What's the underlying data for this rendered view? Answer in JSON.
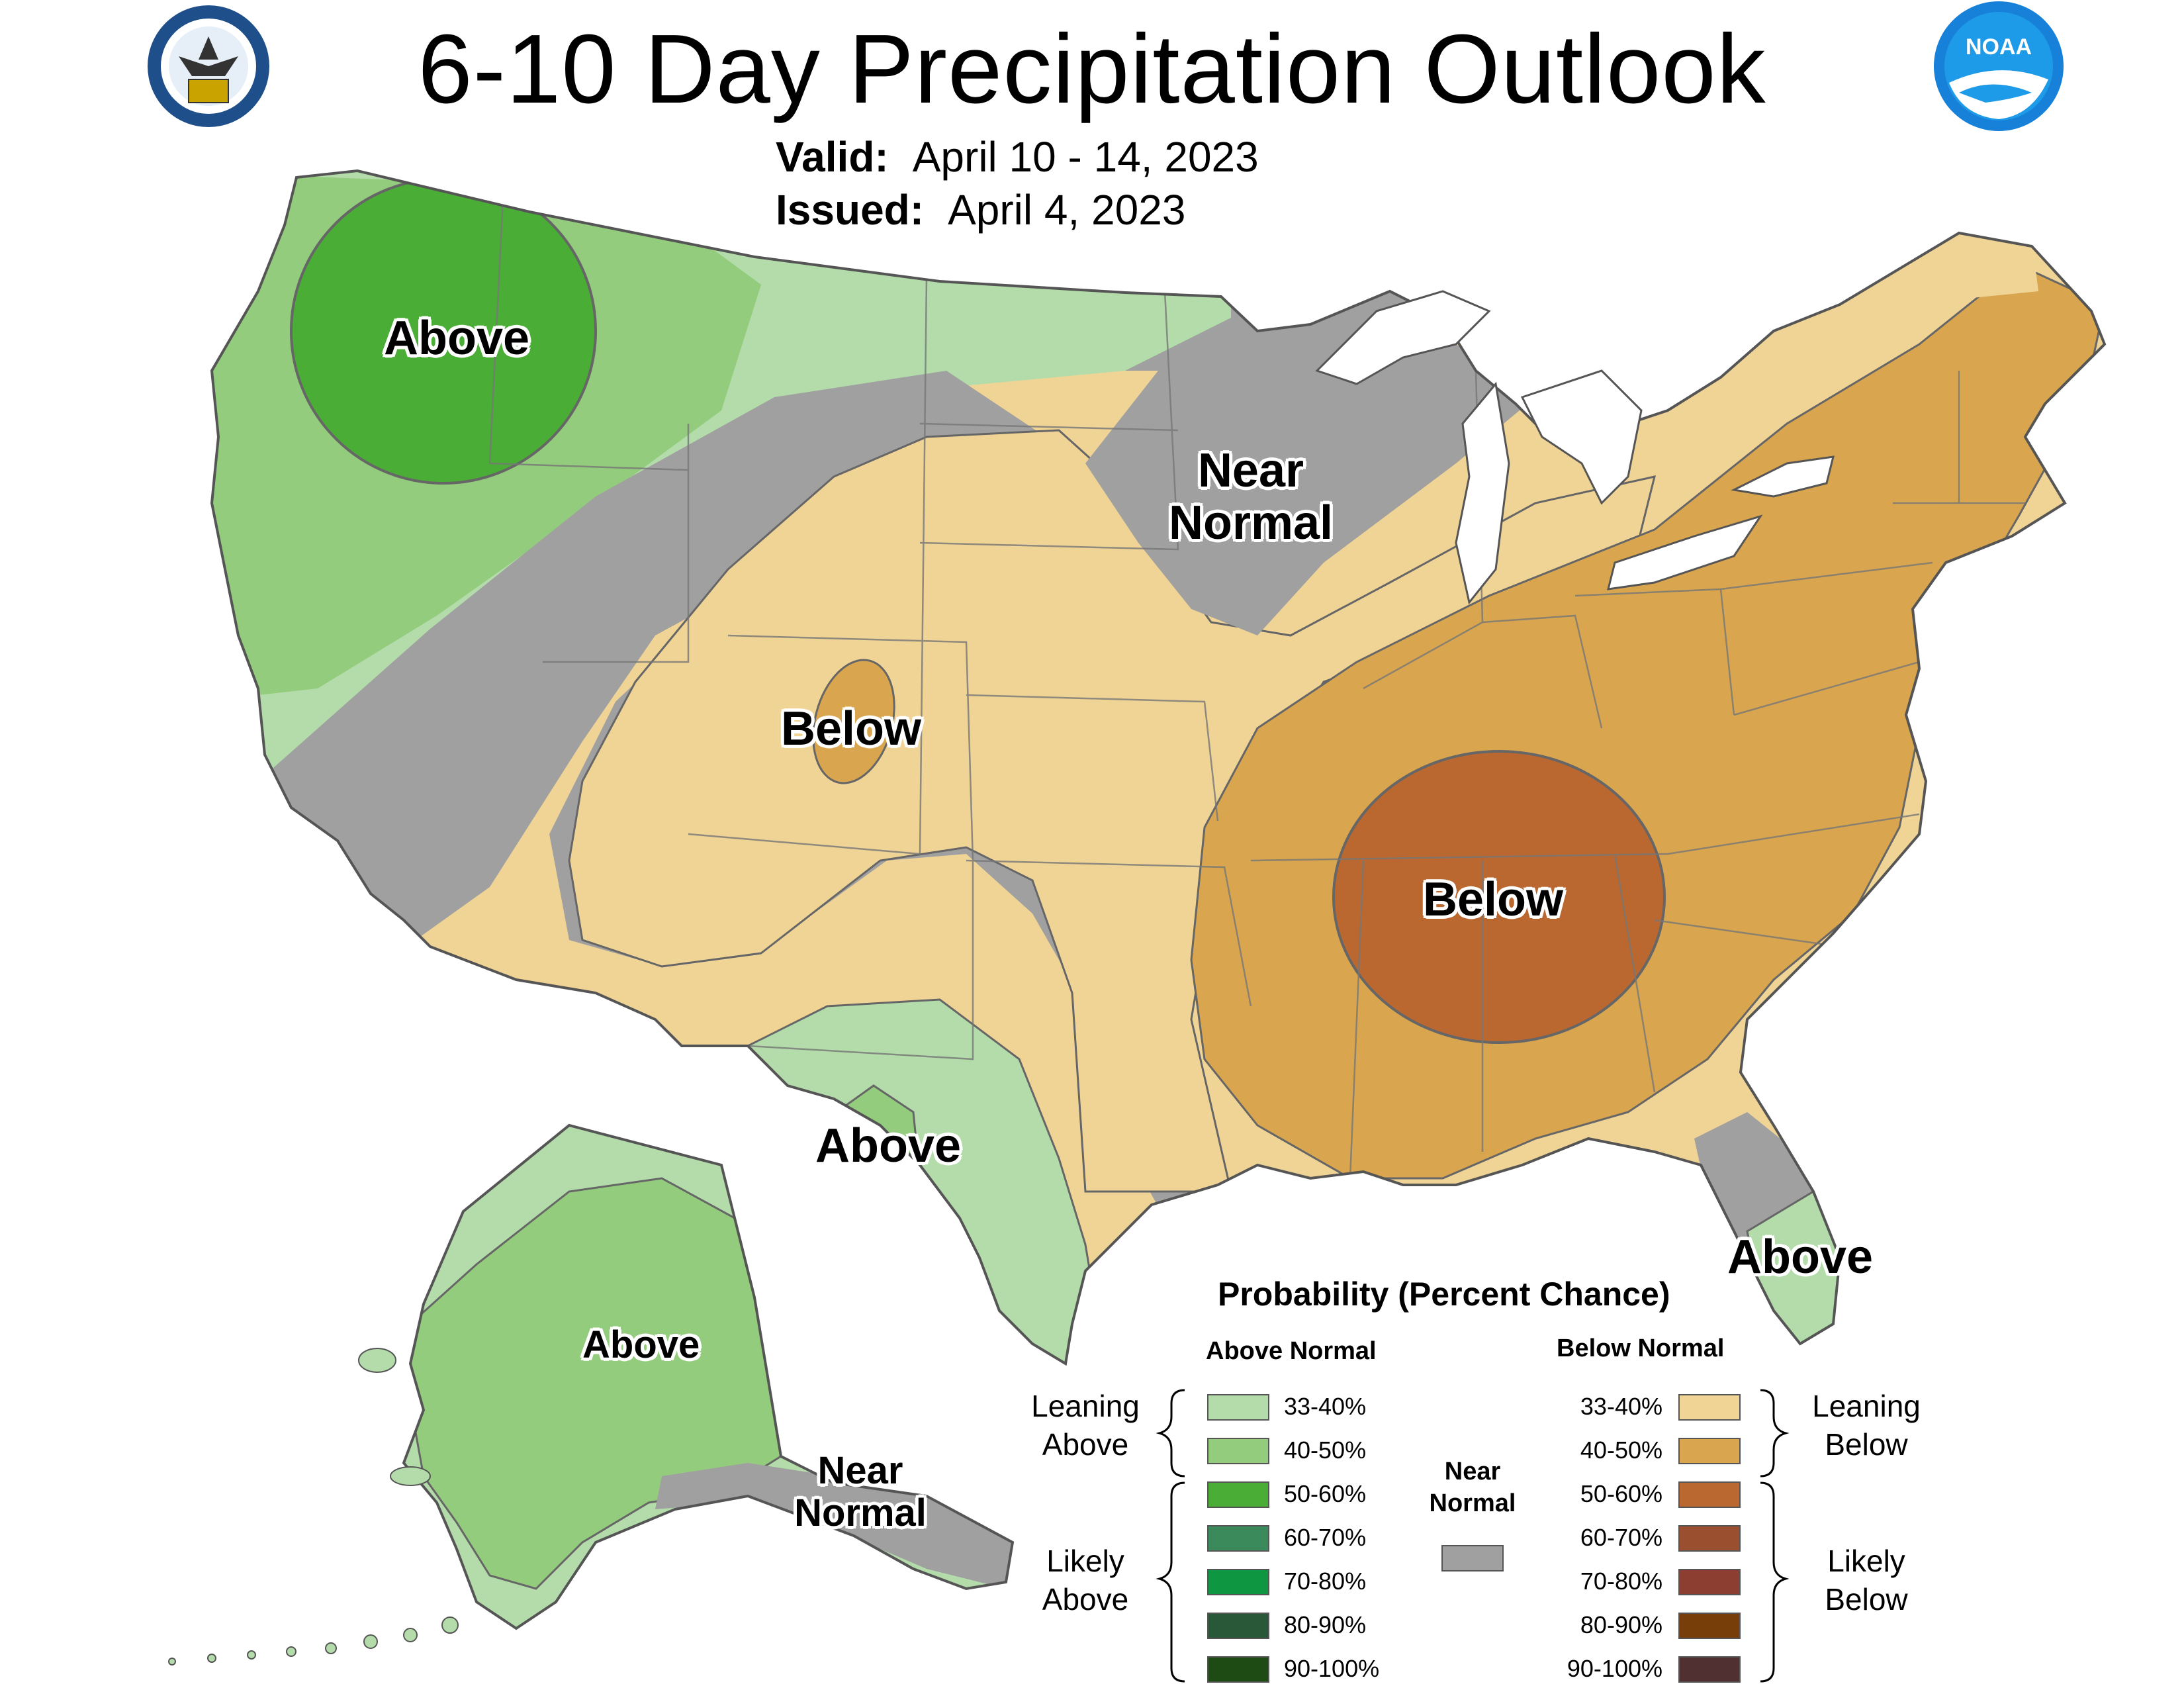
{
  "header": {
    "title": "6-10 Day Precipitation Outlook",
    "valid_label": "Valid:",
    "valid_value": "April 10 - 14, 2023",
    "issued_label": "Issued:",
    "issued_value": "April 4, 2023",
    "logo_left": "department-of-commerce-seal",
    "logo_right": "noaa-logo",
    "noaa_text": "NOAA"
  },
  "regions": {
    "northwest": "Above",
    "upper_midwest_line1": "Near",
    "upper_midwest_line2": "Normal",
    "colorado": "Below",
    "tennessee_valley": "Below",
    "west_texas": "Above",
    "florida": "Above",
    "alaska": "Above",
    "alaska_se_line1": "Near",
    "alaska_se_line2": "Normal"
  },
  "legend": {
    "title": "Probability (Percent Chance)",
    "above_header": "Above Normal",
    "below_header": "Below Normal",
    "leaning_above": [
      "Leaning",
      "Above"
    ],
    "likely_above": [
      "Likely",
      "Above"
    ],
    "leaning_below": [
      "Leaning",
      "Below"
    ],
    "likely_below": [
      "Likely",
      "Below"
    ],
    "near_normal": [
      "Near",
      "Normal"
    ],
    "near_color": "#a0a0a0",
    "above": [
      {
        "label": "33-40%",
        "color": "#b3dcaa"
      },
      {
        "label": "40-50%",
        "color": "#93cc7c"
      },
      {
        "label": "50-60%",
        "color": "#4aae36"
      },
      {
        "label": "60-70%",
        "color": "#3a8a5c"
      },
      {
        "label": "70-80%",
        "color": "#0f9640"
      },
      {
        "label": "80-90%",
        "color": "#285838"
      },
      {
        "label": "90-100%",
        "color": "#1e4a14"
      }
    ],
    "below": [
      {
        "label": "33-40%",
        "color": "#f0d496"
      },
      {
        "label": "40-50%",
        "color": "#d9a54e"
      },
      {
        "label": "50-60%",
        "color": "#bb6830"
      },
      {
        "label": "60-70%",
        "color": "#9a4f2e"
      },
      {
        "label": "70-80%",
        "color": "#8c3e30"
      },
      {
        "label": "80-90%",
        "color": "#783e0a"
      },
      {
        "label": "90-100%",
        "color": "#503030"
      }
    ]
  }
}
